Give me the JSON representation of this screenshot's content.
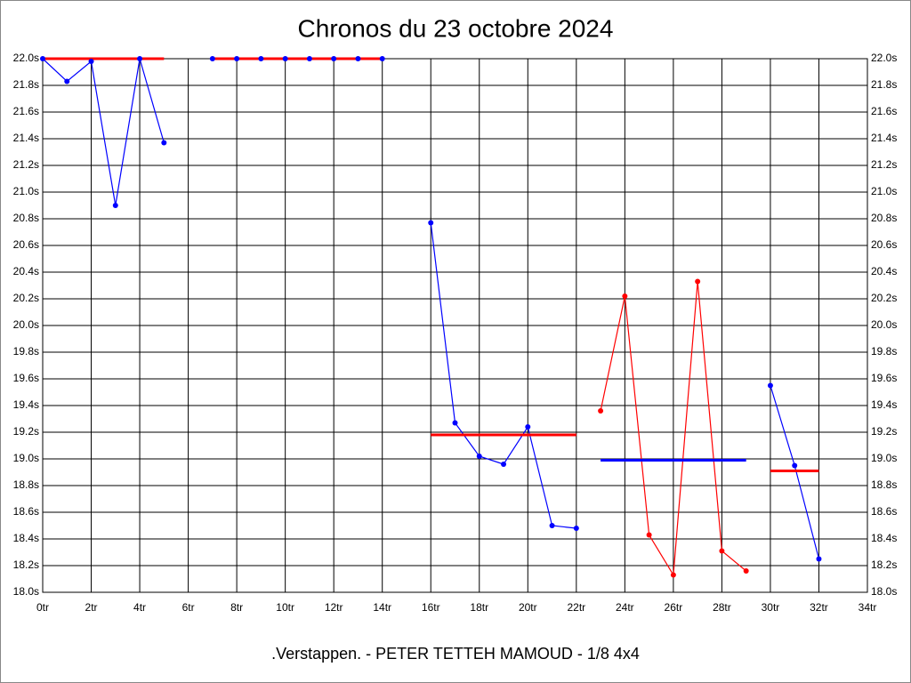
{
  "chart_data": {
    "type": "line",
    "title": "Chronos du 23 octobre 2024",
    "subtitle": ".Verstappen. - PETER TETTEH MAMOUD - 1/8 4x4",
    "x": [
      0,
      1,
      2,
      3,
      4,
      5,
      6,
      7,
      8,
      9,
      10,
      11,
      12,
      13,
      14,
      15,
      16,
      17,
      18,
      19,
      20,
      21,
      22,
      23,
      24,
      25,
      26,
      27,
      28,
      29,
      30,
      31,
      32
    ],
    "series": [
      {
        "color": "#0000ff",
        "values": [
          22.0,
          21.83,
          21.98,
          20.9,
          22.0,
          21.37,
          null,
          22.0,
          22.0,
          22.0,
          22.0,
          22.0,
          22.0,
          22.0,
          22.0,
          null,
          20.77,
          19.27,
          19.02,
          18.96,
          19.24,
          18.5,
          18.48,
          null,
          null,
          null,
          null,
          null,
          null,
          null,
          19.55,
          18.95,
          18.25
        ]
      },
      {
        "color": "#ff0000",
        "values": [
          null,
          null,
          null,
          null,
          null,
          null,
          null,
          null,
          null,
          null,
          null,
          null,
          null,
          null,
          null,
          null,
          null,
          null,
          null,
          null,
          null,
          null,
          null,
          19.36,
          20.22,
          18.43,
          18.13,
          20.33,
          18.31,
          18.16,
          null,
          null,
          null
        ]
      }
    ],
    "mean_lines": [
      {
        "color": "#ff0000",
        "x": [
          0,
          5
        ],
        "value": 22.0
      },
      {
        "color": "#ff0000",
        "x": [
          7,
          14
        ],
        "value": 22.0
      },
      {
        "color": "#ff0000",
        "x": [
          16,
          22
        ],
        "value": 19.18
      },
      {
        "color": "#0000ff",
        "x": [
          23,
          29
        ],
        "value": 18.99
      },
      {
        "color": "#ff0000",
        "x": [
          30,
          32
        ],
        "value": 18.91
      }
    ],
    "xlim": [
      0,
      34
    ],
    "xticks": [
      {
        "value": 0,
        "label": "0tr"
      },
      {
        "value": 2,
        "label": "2tr"
      },
      {
        "value": 4,
        "label": "4tr"
      },
      {
        "value": 6,
        "label": "6tr"
      },
      {
        "value": 8,
        "label": "8tr"
      },
      {
        "value": 10,
        "label": "10tr"
      },
      {
        "value": 12,
        "label": "12tr"
      },
      {
        "value": 14,
        "label": "14tr"
      },
      {
        "value": 16,
        "label": "16tr"
      },
      {
        "value": 18,
        "label": "18tr"
      },
      {
        "value": 20,
        "label": "20tr"
      },
      {
        "value": 22,
        "label": "22tr"
      },
      {
        "value": 24,
        "label": "24tr"
      },
      {
        "value": 26,
        "label": "26tr"
      },
      {
        "value": 28,
        "label": "28tr"
      },
      {
        "value": 30,
        "label": "30tr"
      },
      {
        "value": 32,
        "label": "32tr"
      },
      {
        "value": 34,
        "label": "34tr"
      }
    ],
    "ylim": [
      18.0,
      22.0
    ],
    "yticks": [
      {
        "value": 18.0,
        "label": "18.0s"
      },
      {
        "value": 18.2,
        "label": "18.2s"
      },
      {
        "value": 18.4,
        "label": "18.4s"
      },
      {
        "value": 18.6,
        "label": "18.6s"
      },
      {
        "value": 18.8,
        "label": "18.8s"
      },
      {
        "value": 19.0,
        "label": "19.0s"
      },
      {
        "value": 19.2,
        "label": "19.2s"
      },
      {
        "value": 19.4,
        "label": "19.4s"
      },
      {
        "value": 19.6,
        "label": "19.6s"
      },
      {
        "value": 19.8,
        "label": "19.8s"
      },
      {
        "value": 20.0,
        "label": "20.0s"
      },
      {
        "value": 20.2,
        "label": "20.2s"
      },
      {
        "value": 20.4,
        "label": "20.4s"
      },
      {
        "value": 20.6,
        "label": "20.6s"
      },
      {
        "value": 20.8,
        "label": "20.8s"
      },
      {
        "value": 21.0,
        "label": "21.0s"
      },
      {
        "value": 21.2,
        "label": "21.2s"
      },
      {
        "value": 21.4,
        "label": "21.4s"
      },
      {
        "value": 21.6,
        "label": "21.6s"
      },
      {
        "value": 21.8,
        "label": "21.8s"
      },
      {
        "value": 22.0,
        "label": "22.0s"
      }
    ],
    "grid": true
  }
}
